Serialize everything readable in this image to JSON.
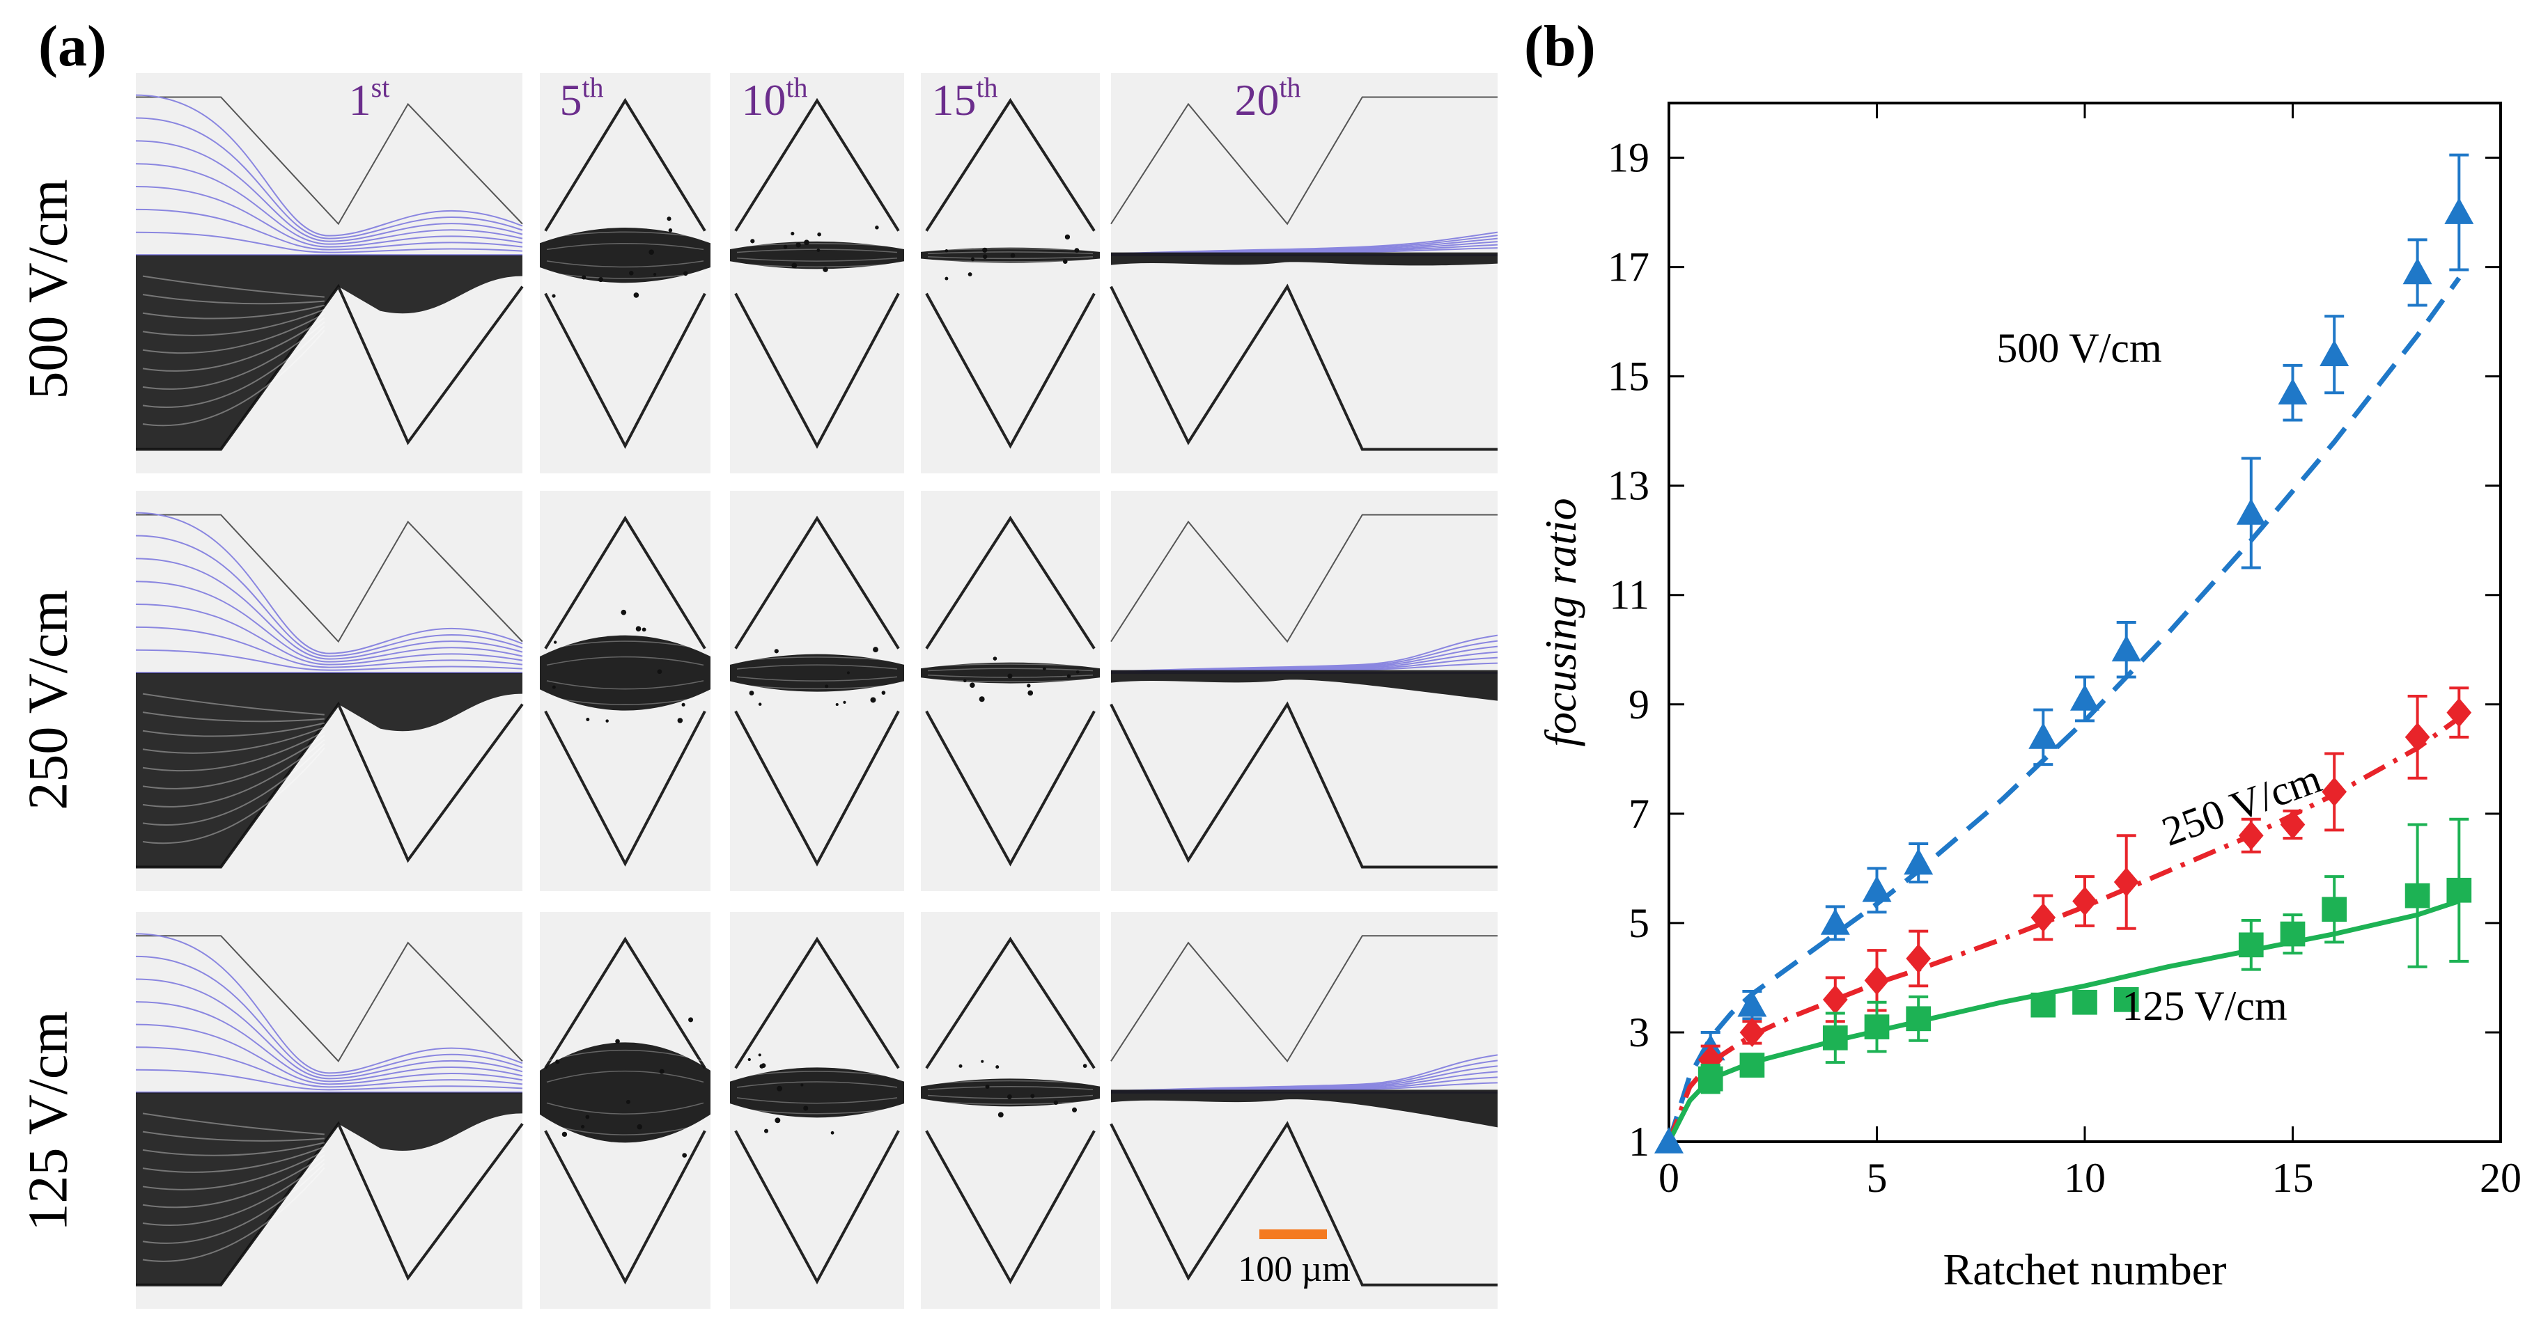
{
  "panel_a": {
    "label": "(a)",
    "column_labels": [
      {
        "text": "1",
        "sup": "st"
      },
      {
        "text": "5",
        "sup": "th"
      },
      {
        "text": "10",
        "sup": "th"
      },
      {
        "text": "15",
        "sup": "th"
      },
      {
        "text": "20",
        "sup": "th"
      }
    ],
    "row_labels": [
      "500 V/cm",
      "250 V/cm",
      "125 V/cm"
    ],
    "scale_bar": {
      "label": "100 µm",
      "color": "#f47a20"
    },
    "colors": {
      "column_label": "#6b2d8c",
      "streamline": "#8a86e0",
      "tile_bg": "#f0f0f0",
      "particles": "#111111"
    }
  },
  "panel_b": {
    "label": "(b)"
  },
  "chart_data": {
    "type": "scatter",
    "title": "",
    "xlabel": "Ratchet number",
    "ylabel": "focusing ratio",
    "xlim": [
      0,
      20
    ],
    "ylim": [
      1,
      20
    ],
    "xticks": [
      0,
      5,
      10,
      15,
      20
    ],
    "yticks": [
      1,
      3,
      5,
      7,
      9,
      11,
      13,
      15,
      17,
      19
    ],
    "grid": false,
    "series": [
      {
        "name": "500 V/cm",
        "label": "500 V/cm",
        "marker": "triangle",
        "color": "#1f78c8",
        "line_style": "dashed",
        "x": [
          0,
          1,
          2,
          4,
          5,
          6,
          9,
          10,
          11,
          14,
          15,
          16,
          18,
          19
        ],
        "y": [
          1,
          2.7,
          3.5,
          5.0,
          5.6,
          6.1,
          8.4,
          9.1,
          10.0,
          12.5,
          14.7,
          15.4,
          16.9,
          18.0
        ],
        "err": [
          0,
          0.3,
          0.25,
          0.3,
          0.4,
          0.35,
          0.5,
          0.4,
          0.5,
          1.0,
          0.5,
          0.7,
          0.6,
          1.05
        ],
        "fit": [
          [
            0,
            1
          ],
          [
            0.5,
            2.2
          ],
          [
            1,
            2.9
          ],
          [
            1.5,
            3.35
          ],
          [
            2,
            3.7
          ],
          [
            3,
            4.25
          ],
          [
            4,
            4.8
          ],
          [
            5,
            5.35
          ],
          [
            6,
            5.95
          ],
          [
            8,
            7.25
          ],
          [
            10,
            8.7
          ],
          [
            12,
            10.3
          ],
          [
            14,
            12.0
          ],
          [
            16,
            13.8
          ],
          [
            18,
            15.75
          ],
          [
            19,
            16.8
          ]
        ]
      },
      {
        "name": "250 V/cm",
        "label": "250 V/cm",
        "marker": "diamond",
        "color": "#e8242a",
        "line_style": "dashdot",
        "x": [
          1,
          2,
          4,
          5,
          6,
          9,
          10,
          11,
          14,
          15,
          16,
          18,
          19
        ],
        "y": [
          2.5,
          3.0,
          3.6,
          3.95,
          4.35,
          5.1,
          5.4,
          5.75,
          6.6,
          6.8,
          7.4,
          8.4,
          8.85
        ],
        "err": [
          0.25,
          0.2,
          0.4,
          0.55,
          0.5,
          0.4,
          0.45,
          0.85,
          0.3,
          0.25,
          0.7,
          0.75,
          0.45
        ],
        "fit": [
          [
            0,
            1
          ],
          [
            0.5,
            2.0
          ],
          [
            1,
            2.45
          ],
          [
            2,
            2.95
          ],
          [
            3,
            3.3
          ],
          [
            4,
            3.6
          ],
          [
            5,
            3.9
          ],
          [
            6,
            4.15
          ],
          [
            8,
            4.7
          ],
          [
            10,
            5.3
          ],
          [
            12,
            5.95
          ],
          [
            14,
            6.6
          ],
          [
            16,
            7.35
          ],
          [
            18,
            8.2
          ],
          [
            19,
            8.75
          ]
        ]
      },
      {
        "name": "125 V/cm",
        "label": "125 V/cm",
        "marker": "square",
        "color": "#1db254",
        "line_style": "solid",
        "x": [
          1,
          2,
          4,
          5,
          6,
          9,
          10,
          11,
          14,
          15,
          16,
          18,
          19
        ],
        "y": [
          2.15,
          2.4,
          2.9,
          3.1,
          3.25,
          3.5,
          3.55,
          3.6,
          4.6,
          4.8,
          5.25,
          5.5,
          5.6
        ],
        "err": [
          0.25,
          0.2,
          0.45,
          0.45,
          0.4,
          0,
          0,
          0,
          0.45,
          0.35,
          0.6,
          1.3,
          1.3
        ],
        "fit": [
          [
            0,
            1
          ],
          [
            0.5,
            1.75
          ],
          [
            1,
            2.15
          ],
          [
            2,
            2.45
          ],
          [
            4,
            2.85
          ],
          [
            6,
            3.2
          ],
          [
            8,
            3.55
          ],
          [
            10,
            3.85
          ],
          [
            12,
            4.2
          ],
          [
            14,
            4.5
          ],
          [
            16,
            4.8
          ],
          [
            18,
            5.15
          ],
          [
            19,
            5.4
          ]
        ]
      }
    ]
  }
}
